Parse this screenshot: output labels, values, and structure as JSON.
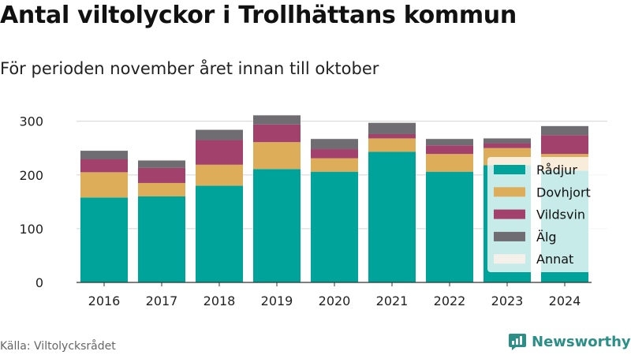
{
  "title": "Antal viltolyckor i Trollhättans kommun",
  "subtitle": "För perioden november året innan till oktober",
  "source": "Källa: Viltolycksrådet",
  "brand": {
    "name": "Newsworthy",
    "icon": "newsworthy-logo-icon",
    "color": "#2a8f86"
  },
  "chart_data": {
    "type": "bar",
    "stacked": true,
    "categories": [
      "2016",
      "2017",
      "2018",
      "2019",
      "2020",
      "2021",
      "2022",
      "2023",
      "2024"
    ],
    "series": [
      {
        "name": "Rådjur",
        "color": "#00a39a",
        "values": [
          158,
          160,
          180,
          211,
          206,
          243,
          206,
          218,
          208
        ]
      },
      {
        "name": "Dovhjort",
        "color": "#ddad5a",
        "values": [
          47,
          25,
          39,
          50,
          25,
          25,
          33,
          32,
          31
        ]
      },
      {
        "name": "Vildsvin",
        "color": "#a3416d",
        "values": [
          24,
          28,
          46,
          33,
          17,
          8,
          16,
          9,
          35
        ]
      },
      {
        "name": "Älg",
        "color": "#6f6d71",
        "values": [
          16,
          14,
          19,
          17,
          19,
          21,
          12,
          9,
          17
        ]
      },
      {
        "name": "Annat",
        "color": "#f3f1ea",
        "values": [
          0,
          1,
          0,
          1,
          1,
          1,
          1,
          1,
          1
        ]
      }
    ],
    "y_ticks": [
      0,
      100,
      200,
      300
    ],
    "ylim": [
      0,
      320
    ],
    "grid": true,
    "legend": {
      "position": "right",
      "items": [
        "Rådjur",
        "Dovhjort",
        "Vildsvin",
        "Älg",
        "Annat"
      ]
    }
  }
}
